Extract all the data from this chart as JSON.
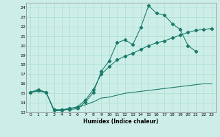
{
  "xlabel": "Humidex (Indice chaleur)",
  "bg_color": "#cdeee8",
  "grid_color": "#aaddcc",
  "line_color": "#1a7a6a",
  "xlim": [
    -0.5,
    23.5
  ],
  "ylim": [
    13.0,
    24.5
  ],
  "yticks": [
    13,
    14,
    15,
    16,
    17,
    18,
    19,
    20,
    21,
    22,
    23,
    24
  ],
  "xticks": [
    0,
    1,
    2,
    3,
    4,
    5,
    6,
    7,
    8,
    9,
    10,
    11,
    12,
    13,
    14,
    15,
    16,
    17,
    18,
    19,
    20,
    21,
    22,
    23
  ],
  "line1_x": [
    0,
    1,
    2,
    3,
    4,
    5,
    6,
    7,
    8,
    9,
    10,
    11,
    12,
    13,
    14,
    15,
    16,
    17,
    18,
    19,
    20,
    21
  ],
  "line1_y": [
    15.1,
    15.4,
    15.1,
    13.2,
    13.2,
    13.3,
    13.4,
    14.1,
    15.1,
    17.3,
    18.4,
    20.3,
    20.6,
    20.1,
    21.9,
    24.2,
    23.4,
    23.2,
    22.3,
    21.7,
    20.0,
    19.4
  ],
  "line2_x": [
    0,
    1,
    2,
    3,
    4,
    5,
    6,
    7,
    8,
    9,
    10,
    11,
    12,
    13,
    14,
    15,
    16,
    17,
    18,
    19,
    20,
    21,
    22,
    23
  ],
  "line2_y": [
    15.1,
    15.3,
    15.1,
    13.3,
    13.3,
    13.4,
    13.6,
    14.3,
    15.4,
    17.0,
    17.8,
    18.5,
    18.9,
    19.2,
    19.6,
    20.0,
    20.3,
    20.5,
    20.8,
    21.1,
    21.4,
    21.6,
    21.7,
    21.8
  ],
  "line3_x": [
    0,
    1,
    2,
    3,
    4,
    5,
    6,
    7,
    8,
    9,
    10,
    11,
    12,
    13,
    14,
    15,
    16,
    17,
    18,
    19,
    20,
    21,
    22,
    23
  ],
  "line3_y": [
    15.1,
    15.2,
    15.1,
    13.2,
    13.2,
    13.4,
    13.5,
    13.8,
    14.1,
    14.5,
    14.6,
    14.8,
    15.0,
    15.1,
    15.2,
    15.3,
    15.4,
    15.5,
    15.6,
    15.7,
    15.8,
    15.9,
    16.0,
    16.0
  ]
}
